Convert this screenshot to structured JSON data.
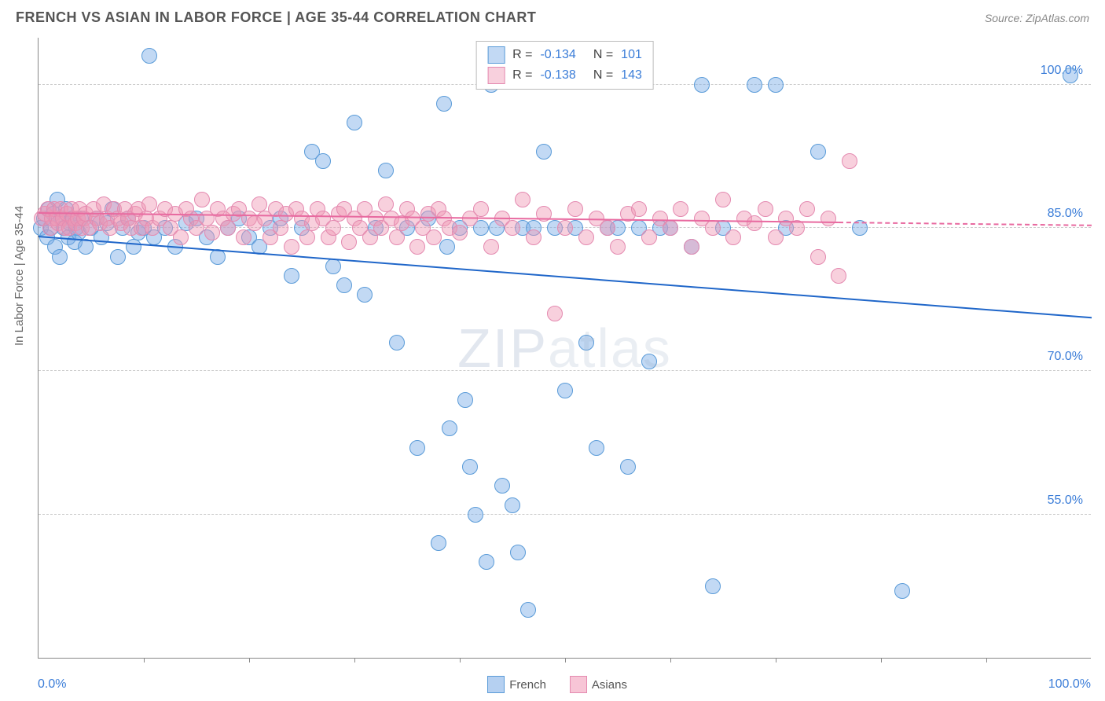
{
  "header": {
    "title": "FRENCH VS ASIAN IN LABOR FORCE | AGE 35-44 CORRELATION CHART",
    "source": "Source: ZipAtlas.com"
  },
  "chart": {
    "type": "scatter",
    "ylabel": "In Labor Force | Age 35-44",
    "xlim": [
      0,
      100
    ],
    "ylim": [
      40,
      105
    ],
    "y_ticks": [
      {
        "v": 100,
        "label": "100.0%"
      },
      {
        "v": 85,
        "label": "85.0%"
      },
      {
        "v": 70,
        "label": "70.0%"
      },
      {
        "v": 55,
        "label": "55.0%"
      }
    ],
    "x_ticks_minor": [
      10,
      20,
      30,
      40,
      50,
      60,
      70,
      80,
      90
    ],
    "x_axis": {
      "min_label": "0.0%",
      "max_label": "100.0%",
      "min_color": "#3b7dd8",
      "max_color": "#3b7dd8"
    },
    "series": [
      {
        "key": "french",
        "label": "French",
        "color_fill": "rgba(120,170,230,0.45)",
        "color_stroke": "#5a9bd8",
        "trend_color": "#1f66c9",
        "r_value": "-0.134",
        "n_value": "101",
        "marker_r": 10,
        "trend": {
          "x1": 0,
          "y1": 84,
          "x2": 100,
          "y2": 75.5,
          "x_solid_end": 100
        },
        "points": [
          [
            0.2,
            85
          ],
          [
            0.5,
            86
          ],
          [
            0.8,
            84
          ],
          [
            1,
            87
          ],
          [
            1.2,
            85
          ],
          [
            1.4,
            86.5
          ],
          [
            1.6,
            83
          ],
          [
            1.8,
            88
          ],
          [
            2,
            82
          ],
          [
            2.2,
            86
          ],
          [
            2.4,
            85
          ],
          [
            2.6,
            87
          ],
          [
            2.8,
            84
          ],
          [
            3,
            85.5
          ],
          [
            3.2,
            86
          ],
          [
            3.4,
            83.5
          ],
          [
            3.6,
            85
          ],
          [
            3.8,
            84.5
          ],
          [
            4,
            86
          ],
          [
            4.5,
            83
          ],
          [
            5,
            85
          ],
          [
            5.5,
            86
          ],
          [
            6,
            84
          ],
          [
            6.5,
            85.5
          ],
          [
            7,
            87
          ],
          [
            7.5,
            82
          ],
          [
            8,
            85
          ],
          [
            8.5,
            86
          ],
          [
            9,
            83
          ],
          [
            9.5,
            84.5
          ],
          [
            10,
            85
          ],
          [
            10.5,
            103
          ],
          [
            11,
            84
          ],
          [
            12,
            85
          ],
          [
            13,
            83
          ],
          [
            14,
            85.5
          ],
          [
            15,
            86
          ],
          [
            16,
            84
          ],
          [
            17,
            82
          ],
          [
            18,
            85
          ],
          [
            19,
            86
          ],
          [
            20,
            84
          ],
          [
            21,
            83
          ],
          [
            22,
            85
          ],
          [
            23,
            86
          ],
          [
            24,
            80
          ],
          [
            25,
            85
          ],
          [
            26,
            93
          ],
          [
            27,
            92
          ],
          [
            28,
            81
          ],
          [
            29,
            79
          ],
          [
            30,
            96
          ],
          [
            31,
            78
          ],
          [
            32,
            85
          ],
          [
            33,
            91
          ],
          [
            34,
            73
          ],
          [
            35,
            85
          ],
          [
            36,
            62
          ],
          [
            37,
            86
          ],
          [
            38,
            52
          ],
          [
            38.5,
            98
          ],
          [
            38.8,
            83
          ],
          [
            39,
            64
          ],
          [
            40,
            85
          ],
          [
            40.5,
            67
          ],
          [
            41,
            60
          ],
          [
            41.5,
            55
          ],
          [
            42,
            85
          ],
          [
            42.5,
            50
          ],
          [
            43,
            100
          ],
          [
            43.5,
            85
          ],
          [
            44,
            58
          ],
          [
            45,
            56
          ],
          [
            45.5,
            51
          ],
          [
            46,
            85
          ],
          [
            46.5,
            45
          ],
          [
            47,
            85
          ],
          [
            48,
            93
          ],
          [
            49,
            85
          ],
          [
            50,
            68
          ],
          [
            51,
            85
          ],
          [
            52,
            73
          ],
          [
            53,
            62
          ],
          [
            54,
            85
          ],
          [
            55,
            85
          ],
          [
            56,
            60
          ],
          [
            57,
            85
          ],
          [
            58,
            71
          ],
          [
            59,
            85
          ],
          [
            60,
            85
          ],
          [
            62,
            83
          ],
          [
            63,
            100
          ],
          [
            64,
            47.5
          ],
          [
            65,
            85
          ],
          [
            68,
            100
          ],
          [
            70,
            100
          ],
          [
            71,
            85
          ],
          [
            74,
            93
          ],
          [
            78,
            85
          ],
          [
            82,
            47
          ],
          [
            98,
            101
          ]
        ]
      },
      {
        "key": "asian",
        "label": "Asians",
        "color_fill": "rgba(240,150,180,0.45)",
        "color_stroke": "#e48ab0",
        "trend_color": "#e86aa0",
        "r_value": "-0.138",
        "n_value": "143",
        "marker_r": 10,
        "trend": {
          "x1": 0,
          "y1": 86.5,
          "x2": 100,
          "y2": 85.2,
          "x_solid_end": 76
        },
        "points": [
          [
            0.3,
            86
          ],
          [
            0.6,
            86.5
          ],
          [
            0.9,
            87
          ],
          [
            1.1,
            85
          ],
          [
            1.3,
            86
          ],
          [
            1.5,
            87
          ],
          [
            1.7,
            86
          ],
          [
            1.9,
            85.5
          ],
          [
            2.1,
            87
          ],
          [
            2.3,
            86
          ],
          [
            2.5,
            85
          ],
          [
            2.7,
            86.5
          ],
          [
            2.9,
            85
          ],
          [
            3.1,
            87
          ],
          [
            3.3,
            86
          ],
          [
            3.5,
            85.5
          ],
          [
            3.7,
            86
          ],
          [
            3.9,
            87
          ],
          [
            4.1,
            85
          ],
          [
            4.3,
            86
          ],
          [
            4.5,
            86.5
          ],
          [
            4.8,
            85
          ],
          [
            5.2,
            87
          ],
          [
            5.5,
            86
          ],
          [
            5.8,
            85.5
          ],
          [
            6.2,
            87.5
          ],
          [
            6.5,
            86
          ],
          [
            6.8,
            85
          ],
          [
            7.2,
            87
          ],
          [
            7.5,
            86
          ],
          [
            7.8,
            85.5
          ],
          [
            8.2,
            87
          ],
          [
            8.5,
            86
          ],
          [
            8.8,
            85
          ],
          [
            9.2,
            86.5
          ],
          [
            9.5,
            87
          ],
          [
            9.8,
            85
          ],
          [
            10.2,
            86
          ],
          [
            10.5,
            87.5
          ],
          [
            10.8,
            85
          ],
          [
            11.5,
            86
          ],
          [
            12,
            87
          ],
          [
            12.5,
            85
          ],
          [
            13,
            86.5
          ],
          [
            13.5,
            84
          ],
          [
            14,
            87
          ],
          [
            14.5,
            86
          ],
          [
            15,
            85
          ],
          [
            15.5,
            88
          ],
          [
            16,
            86
          ],
          [
            16.5,
            84.5
          ],
          [
            17,
            87
          ],
          [
            17.5,
            86
          ],
          [
            18,
            85
          ],
          [
            18.5,
            86.5
          ],
          [
            19,
            87
          ],
          [
            19.5,
            84
          ],
          [
            20,
            86
          ],
          [
            20.5,
            85.5
          ],
          [
            21,
            87.5
          ],
          [
            21.5,
            86
          ],
          [
            22,
            84
          ],
          [
            22.5,
            87
          ],
          [
            23,
            85
          ],
          [
            23.5,
            86.5
          ],
          [
            24,
            83
          ],
          [
            24.5,
            87
          ],
          [
            25,
            86
          ],
          [
            25.5,
            84
          ],
          [
            26,
            85.5
          ],
          [
            26.5,
            87
          ],
          [
            27,
            86
          ],
          [
            27.5,
            84
          ],
          [
            28,
            85
          ],
          [
            28.5,
            86.5
          ],
          [
            29,
            87
          ],
          [
            29.5,
            83.5
          ],
          [
            30,
            86
          ],
          [
            30.5,
            85
          ],
          [
            31,
            87
          ],
          [
            31.5,
            84
          ],
          [
            32,
            86
          ],
          [
            32.5,
            85
          ],
          [
            33,
            87.5
          ],
          [
            33.5,
            86
          ],
          [
            34,
            84
          ],
          [
            34.5,
            85.5
          ],
          [
            35,
            87
          ],
          [
            35.5,
            86
          ],
          [
            36,
            83
          ],
          [
            36.5,
            85
          ],
          [
            37,
            86.5
          ],
          [
            37.5,
            84
          ],
          [
            38,
            87
          ],
          [
            38.5,
            86
          ],
          [
            39,
            85
          ],
          [
            40,
            84.5
          ],
          [
            41,
            86
          ],
          [
            42,
            87
          ],
          [
            43,
            83
          ],
          [
            44,
            86
          ],
          [
            45,
            85
          ],
          [
            46,
            88
          ],
          [
            47,
            84
          ],
          [
            48,
            86.5
          ],
          [
            49,
            76
          ],
          [
            50,
            85
          ],
          [
            51,
            87
          ],
          [
            52,
            84
          ],
          [
            53,
            86
          ],
          [
            54,
            85
          ],
          [
            55,
            83
          ],
          [
            56,
            86.5
          ],
          [
            57,
            87
          ],
          [
            58,
            84
          ],
          [
            59,
            86
          ],
          [
            60,
            85
          ],
          [
            61,
            87
          ],
          [
            62,
            83
          ],
          [
            63,
            86
          ],
          [
            64,
            85
          ],
          [
            65,
            88
          ],
          [
            66,
            84
          ],
          [
            67,
            86
          ],
          [
            68,
            85.5
          ],
          [
            69,
            87
          ],
          [
            70,
            84
          ],
          [
            71,
            86
          ],
          [
            72,
            85
          ],
          [
            73,
            87
          ],
          [
            74,
            82
          ],
          [
            75,
            86
          ],
          [
            76,
            80
          ],
          [
            77,
            92
          ]
        ]
      }
    ],
    "bottom_legend": [
      {
        "label": "French",
        "fill": "rgba(120,170,230,0.55)",
        "stroke": "#5a9bd8"
      },
      {
        "label": "Asians",
        "fill": "rgba(240,150,180,0.55)",
        "stroke": "#e48ab0"
      }
    ],
    "y_tick_label_color": "#3b7dd8",
    "watermark": {
      "bold": "ZIP",
      "rest": "atlas"
    }
  }
}
